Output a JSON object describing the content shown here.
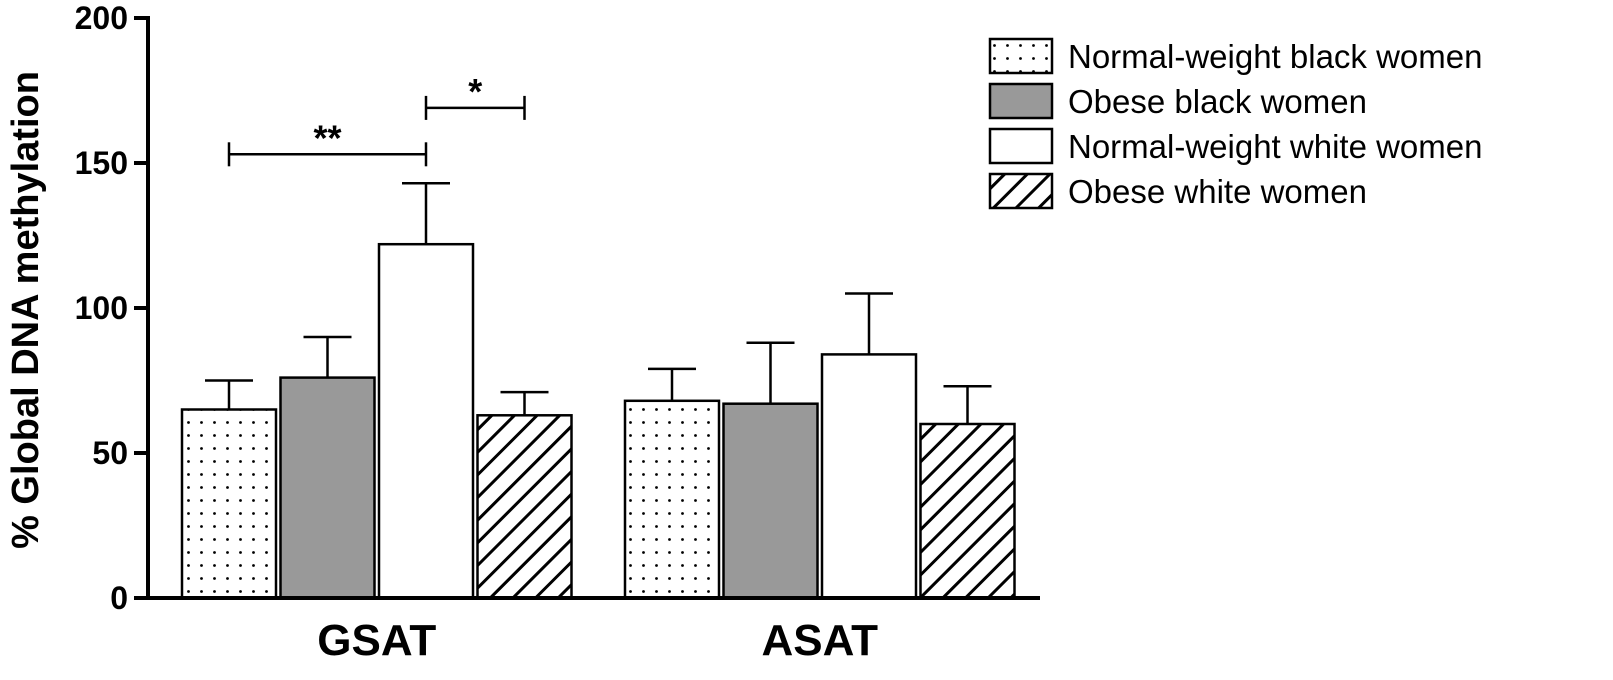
{
  "chart_data": {
    "type": "bar",
    "ylabel": "% Global DNA methylation",
    "xlabel": "",
    "ylim": [
      0,
      200
    ],
    "yticks": [
      "0",
      "50",
      "100",
      "150",
      "200"
    ],
    "categories": [
      "GSAT",
      "ASAT"
    ],
    "series": [
      {
        "name": "Normal-weight black women",
        "pattern": "dots",
        "values": [
          65,
          68
        ],
        "errors": [
          10,
          11
        ]
      },
      {
        "name": "Obese black women",
        "pattern": "gray",
        "values": [
          76,
          67
        ],
        "errors": [
          14,
          21
        ]
      },
      {
        "name": "Normal-weight white women",
        "pattern": "white",
        "values": [
          122,
          84
        ],
        "errors": [
          21,
          21
        ]
      },
      {
        "name": "Obese white women",
        "pattern": "hatch",
        "values": [
          63,
          60
        ],
        "errors": [
          8,
          13
        ]
      }
    ],
    "annotations": [
      {
        "label": "**",
        "category": "GSAT",
        "from_series": 0,
        "to_series": 2,
        "y": 153
      },
      {
        "label": "*",
        "category": "GSAT",
        "from_series": 2,
        "to_series": 3,
        "y": 169
      }
    ],
    "legend_position": "top-right",
    "grid": false
  },
  "colors": {
    "gray_fill": "#999999",
    "stroke": "#000000",
    "background": "#ffffff"
  }
}
